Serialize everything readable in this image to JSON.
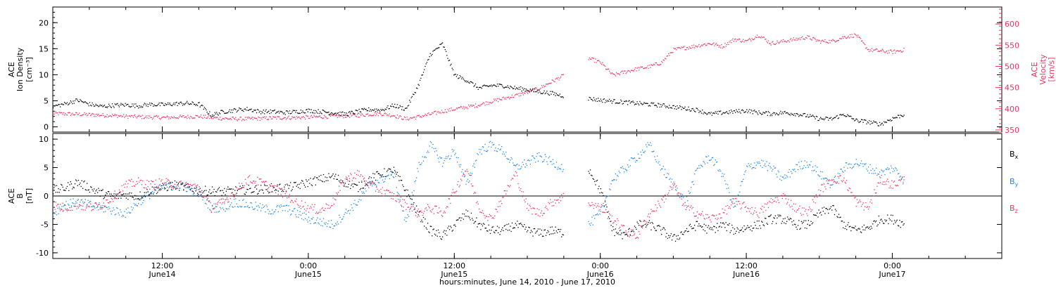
{
  "colors": {
    "black": "#000000",
    "pink": "#e8355e",
    "blue": "#1e88e5",
    "axis_right": "#e8355e"
  },
  "chart_data": [
    {
      "type": "scatter",
      "panel": "top",
      "title": "",
      "x_range": [
        0,
        78
      ],
      "y_left": {
        "label_lines": [
          "ACE",
          "Ion Density",
          "[cm⁻³]"
        ],
        "range": [
          -1,
          23
        ],
        "ticks": [
          "0",
          "5",
          "10",
          "15",
          "20"
        ]
      },
      "y_right": {
        "label_lines": [
          "ACE",
          "Velocity",
          "[km/s]"
        ],
        "range": [
          345,
          640
        ],
        "ticks": [
          "350",
          "400",
          "450",
          "500",
          "550",
          "600"
        ]
      },
      "series": [
        {
          "name": "",
          "axis": "left",
          "color": "black",
          "x": [
            0,
            1,
            2,
            3,
            4,
            5,
            6,
            7,
            8,
            9,
            10,
            11,
            12,
            13,
            14,
            15,
            16,
            17,
            18,
            19,
            20,
            21,
            22,
            23,
            24,
            25,
            26,
            27,
            28,
            29,
            30,
            31,
            32,
            33,
            34,
            35,
            36,
            37,
            38,
            39,
            40,
            41,
            42,
            43,
            44,
            45,
            46,
            47,
            48,
            49,
            50,
            51,
            52,
            53,
            54,
            55,
            56,
            57,
            58,
            59,
            60,
            61,
            62,
            63,
            64,
            65,
            66,
            67,
            68,
            69,
            70
          ],
          "y": [
            4.0,
            4.5,
            5.2,
            4.4,
            4.0,
            4.2,
            4.3,
            4.1,
            4.4,
            4.3,
            4.5,
            4.6,
            4.4,
            2.3,
            3.0,
            3.3,
            3.5,
            3.0,
            3.0,
            2.8,
            3.0,
            3.2,
            3.0,
            2.8,
            2.5,
            3.0,
            3.4,
            3.3,
            4.2,
            3.5,
            8.0,
            14.0,
            16.0,
            10.0,
            9.0,
            7.5,
            8.0,
            8.0,
            7.5,
            7.2,
            6.8,
            6.5,
            6.0,
            null,
            5.5,
            5.2,
            5.0,
            4.8,
            4.6,
            4.4,
            4.2,
            3.9,
            3.6,
            3.3,
            2.5,
            2.8,
            3.0,
            3.2,
            2.8,
            2.6,
            2.8,
            2.6,
            2.2,
            1.6,
            1.6,
            2.5,
            1.3,
            1.0,
            0.6,
            1.7,
            2.5
          ]
        },
        {
          "name": "",
          "axis": "right",
          "color": "pink",
          "x": [
            0,
            1,
            2,
            3,
            4,
            5,
            6,
            7,
            8,
            9,
            10,
            11,
            12,
            13,
            14,
            15,
            16,
            17,
            18,
            19,
            20,
            21,
            22,
            23,
            24,
            25,
            26,
            27,
            28,
            29,
            30,
            31,
            32,
            33,
            34,
            35,
            36,
            37,
            38,
            39,
            40,
            41,
            42,
            43,
            44,
            45,
            46,
            47,
            48,
            49,
            50,
            51,
            52,
            53,
            54,
            55,
            56,
            57,
            58,
            59,
            60,
            61,
            62,
            63,
            64,
            65,
            66,
            67,
            68,
            69,
            70
          ],
          "y": [
            390,
            389,
            388,
            387,
            386,
            385,
            383,
            382,
            381,
            380,
            381,
            382,
            383,
            380,
            378,
            377,
            377,
            378,
            379,
            380,
            380,
            381,
            382,
            383,
            384,
            385,
            388,
            389,
            385,
            377,
            382,
            388,
            395,
            400,
            405,
            410,
            418,
            425,
            432,
            440,
            450,
            465,
            480,
            null,
            520,
            510,
            480,
            488,
            495,
            500,
            510,
            540,
            545,
            550,
            555,
            548,
            565,
            560,
            575,
            555,
            560,
            565,
            570,
            560,
            560,
            570,
            575,
            540,
            537,
            535,
            540
          ]
        }
      ]
    },
    {
      "type": "scatter",
      "panel": "bottom",
      "title": "",
      "x_range": [
        0,
        78
      ],
      "y_left": {
        "label_lines": [
          "ACE",
          "B",
          "[nT]"
        ],
        "range": [
          -11,
          11
        ],
        "ticks": [
          "-10",
          "-5",
          "0",
          "5",
          "10"
        ]
      },
      "xlabel": "hours:minutes, June 14, 2010 - June 17, 2010",
      "x_ticks": [
        {
          "x": 9,
          "line1": "12:00",
          "line2": "June14"
        },
        {
          "x": 21,
          "line1": "0:00",
          "line2": "June15"
        },
        {
          "x": 33,
          "line1": "12:00",
          "line2": "June15"
        },
        {
          "x": 45,
          "line1": "0:00",
          "line2": "June16"
        },
        {
          "x": 57,
          "line1": "12:00",
          "line2": "June16"
        },
        {
          "x": 69,
          "line1": "0:00",
          "line2": "June17"
        }
      ],
      "legend": [
        {
          "label": "B",
          "sub": "x",
          "color": "black"
        },
        {
          "label": "B",
          "sub": "y",
          "color": "blue"
        },
        {
          "label": "B",
          "sub": "z",
          "color": "pink"
        }
      ],
      "series": [
        {
          "name": "Bx",
          "color": "black",
          "x": [
            0,
            1,
            2,
            3,
            4,
            5,
            6,
            7,
            8,
            9,
            10,
            11,
            12,
            13,
            14,
            15,
            16,
            17,
            18,
            19,
            20,
            21,
            22,
            23,
            24,
            25,
            26,
            27,
            28,
            29,
            30,
            31,
            32,
            33,
            34,
            35,
            36,
            37,
            38,
            39,
            40,
            41,
            42,
            43,
            44,
            45,
            46,
            47,
            48,
            49,
            50,
            51,
            52,
            53,
            54,
            55,
            56,
            57,
            58,
            59,
            60,
            61,
            62,
            63,
            64,
            65,
            66,
            67,
            68,
            69,
            70
          ],
          "y": [
            1.0,
            1.5,
            2.5,
            1.5,
            0.5,
            0.0,
            0.3,
            0.0,
            1.0,
            1.5,
            2.0,
            1.5,
            1.0,
            1.0,
            0.8,
            1.0,
            1.2,
            1.2,
            1.5,
            1.5,
            1.8,
            2.5,
            3.0,
            3.5,
            2.5,
            1.5,
            3.0,
            4.0,
            4.5,
            1.0,
            -3.0,
            -6.0,
            -7.0,
            -5.0,
            -3.0,
            -5.0,
            -6.0,
            -6.0,
            -5.0,
            -6.0,
            -6.5,
            -6.0,
            -6.5,
            null,
            5.0,
            1.0,
            -6.0,
            -7.0,
            -5.0,
            -5.0,
            -6.0,
            -7.5,
            -6.0,
            -5.0,
            -6.0,
            -5.0,
            -6.0,
            -5.5,
            -5.0,
            -4.0,
            -4.0,
            -5.0,
            -5.0,
            -3.0,
            -2.0,
            -5.0,
            -6.0,
            -5.5,
            -4.0,
            -4.0,
            -5.0
          ]
        },
        {
          "name": "By",
          "color": "blue",
          "x": [
            0,
            1,
            2,
            3,
            4,
            5,
            6,
            7,
            8,
            9,
            10,
            11,
            12,
            13,
            14,
            15,
            16,
            17,
            18,
            19,
            20,
            21,
            22,
            23,
            24,
            25,
            26,
            27,
            28,
            29,
            30,
            31,
            32,
            33,
            34,
            35,
            36,
            37,
            38,
            39,
            40,
            41,
            42,
            43,
            44,
            45,
            46,
            47,
            48,
            49,
            50,
            51,
            52,
            53,
            54,
            55,
            56,
            57,
            58,
            59,
            60,
            61,
            62,
            63,
            64,
            65,
            66,
            67,
            68,
            69,
            70
          ],
          "y": [
            -3.0,
            -1.5,
            -1.0,
            -1.5,
            -2.0,
            -2.5,
            -3.0,
            -1.0,
            0.5,
            1.5,
            2.0,
            1.5,
            0.5,
            -2.0,
            -2.0,
            -1.0,
            -1.5,
            -2.0,
            -2.5,
            -2.0,
            -3.0,
            -4.0,
            -4.5,
            -5.0,
            -3.0,
            -1.0,
            2.0,
            3.0,
            4.0,
            -5.0,
            5.0,
            9.0,
            6.0,
            8.0,
            2.0,
            8.0,
            9.0,
            8.0,
            5.0,
            6.0,
            7.0,
            6.0,
            5.0,
            null,
            -5.0,
            -3.0,
            3.0,
            5.0,
            7.0,
            9.0,
            5.0,
            2.0,
            -1.0,
            5.0,
            7.0,
            4.0,
            -2.0,
            5.0,
            6.0,
            5.0,
            3.0,
            5.0,
            6.0,
            4.0,
            2.0,
            5.0,
            6.0,
            5.0,
            4.0,
            5.0,
            3.0
          ]
        },
        {
          "name": "Bz",
          "color": "pink",
          "x": [
            0,
            1,
            2,
            3,
            4,
            5,
            6,
            7,
            8,
            9,
            10,
            11,
            12,
            13,
            14,
            15,
            16,
            17,
            18,
            19,
            20,
            21,
            22,
            23,
            24,
            25,
            26,
            27,
            28,
            29,
            30,
            31,
            32,
            33,
            34,
            35,
            36,
            37,
            38,
            39,
            40,
            41,
            42,
            43,
            44,
            45,
            46,
            47,
            48,
            49,
            50,
            51,
            52,
            53,
            54,
            55,
            56,
            57,
            58,
            59,
            60,
            61,
            62,
            63,
            64,
            65,
            66,
            67,
            68,
            69,
            70
          ],
          "y": [
            -1.5,
            -2.0,
            -1.5,
            -2.0,
            -1.5,
            0.0,
            2.0,
            2.5,
            2.0,
            2.5,
            2.0,
            2.0,
            1.5,
            -2.0,
            -1.0,
            1.0,
            3.0,
            2.5,
            1.5,
            0.5,
            -1.0,
            -2.0,
            -2.5,
            -1.0,
            3.0,
            4.0,
            2.0,
            1.0,
            0.0,
            -1.5,
            -3.0,
            -2.0,
            -3.0,
            1.0,
            5.0,
            -2.0,
            -4.0,
            0.0,
            4.0,
            -2.0,
            -3.0,
            -1.0,
            0.0,
            null,
            -1.0,
            -2.0,
            -4.0,
            -6.0,
            -7.0,
            -3.0,
            -1.0,
            2.0,
            -2.0,
            -3.0,
            -4.0,
            -3.0,
            -1.0,
            -2.0,
            -3.0,
            -1.0,
            0.0,
            -2.0,
            -3.0,
            1.0,
            3.0,
            3.0,
            -1.0,
            -2.0,
            3.0,
            2.0,
            3.0
          ]
        }
      ]
    }
  ]
}
